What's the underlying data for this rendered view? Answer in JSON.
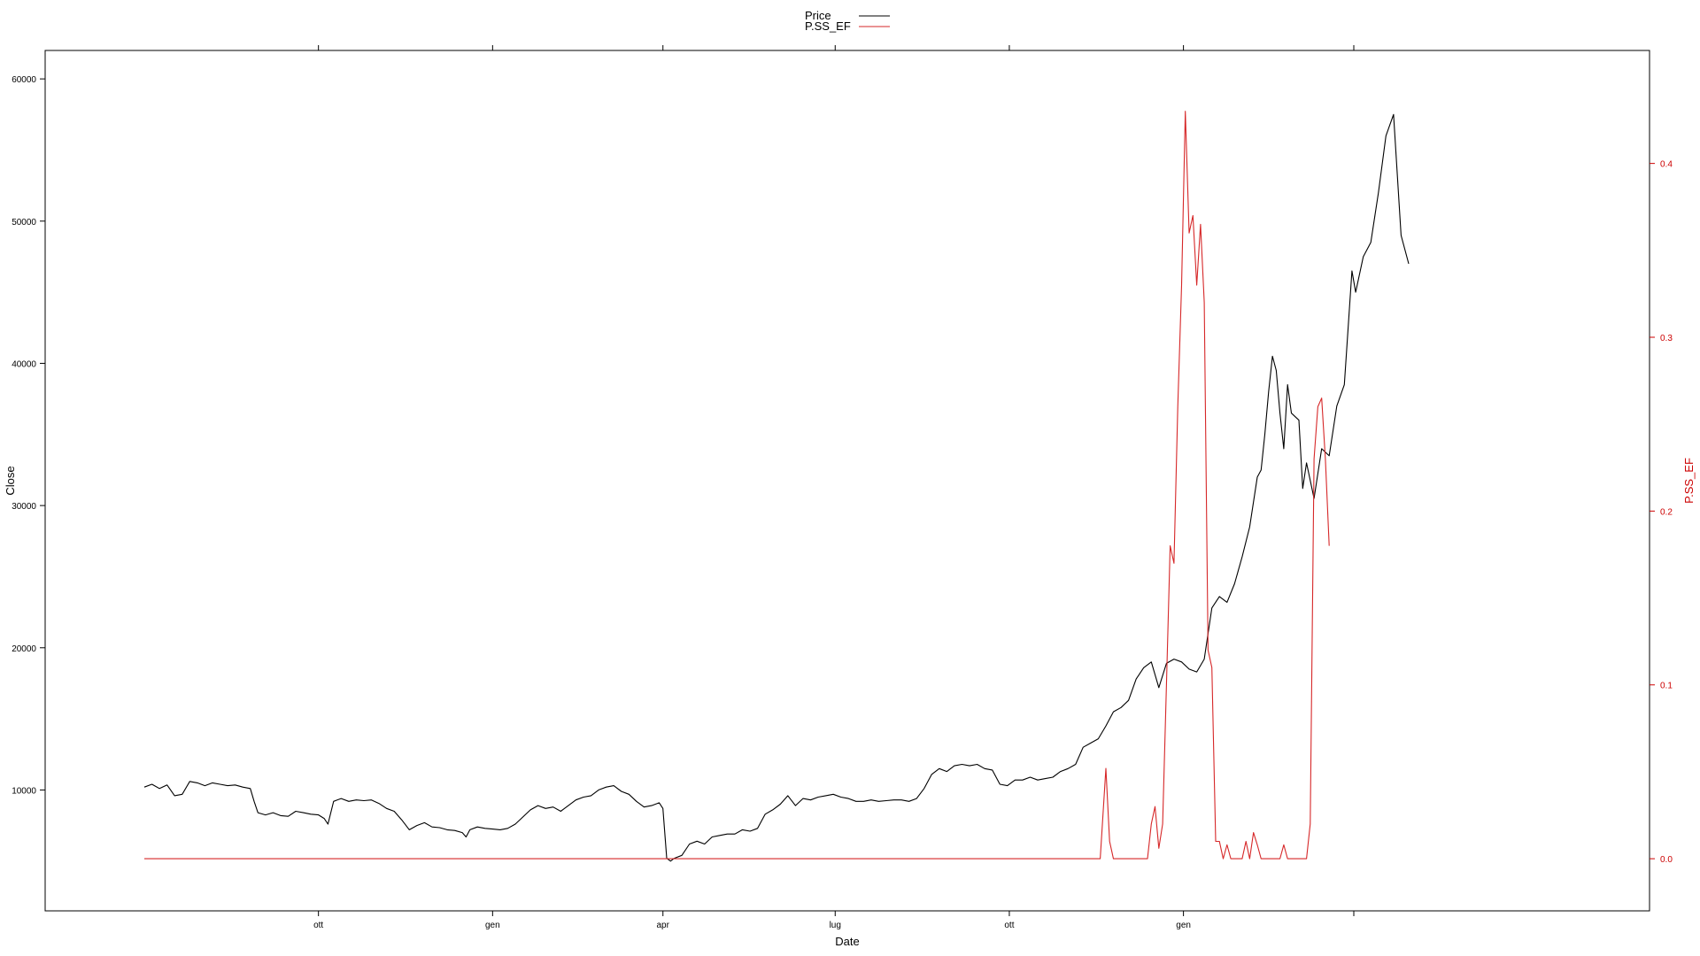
{
  "chart_data": {
    "type": "line",
    "xlabel": "Date",
    "ylabel": "Close",
    "y2label": "P.SS_EF",
    "ylim": [
      1500,
      62000
    ],
    "y2lim": [
      -0.03,
      0.465
    ],
    "xlim": [
      0,
      1080
    ],
    "x_ticks": [
      {
        "label": "ott",
        "t": 92
      },
      {
        "label": "gen",
        "t": 184
      },
      {
        "label": "apr",
        "t": 274
      },
      {
        "label": "lug",
        "t": 365
      },
      {
        "label": "ott",
        "t": 457
      },
      {
        "label": "gen",
        "t": 549
      },
      {
        "label": "",
        "t": 639
      }
    ],
    "y_ticks": [
      10000,
      20000,
      30000,
      40000,
      50000,
      60000
    ],
    "y2_ticks": [
      "0.0",
      "0.1",
      "0.2",
      "0.3",
      "0.4"
    ],
    "legend": {
      "position": "top",
      "items": [
        "Price",
        "P.SS_EF"
      ]
    },
    "series": [
      {
        "name": "Price",
        "color": "#000000",
        "axis": "left",
        "points": [
          [
            0,
            10200
          ],
          [
            4,
            10400
          ],
          [
            8,
            10100
          ],
          [
            12,
            10350
          ],
          [
            16,
            9600
          ],
          [
            20,
            9700
          ],
          [
            24,
            10600
          ],
          [
            28,
            10500
          ],
          [
            32,
            10300
          ],
          [
            36,
            10500
          ],
          [
            40,
            10400
          ],
          [
            44,
            10300
          ],
          [
            48,
            10350
          ],
          [
            52,
            10200
          ],
          [
            56,
            10100
          ],
          [
            58,
            9200
          ],
          [
            60,
            8400
          ],
          [
            64,
            8250
          ],
          [
            68,
            8400
          ],
          [
            72,
            8200
          ],
          [
            76,
            8150
          ],
          [
            80,
            8500
          ],
          [
            84,
            8400
          ],
          [
            88,
            8300
          ],
          [
            92,
            8250
          ],
          [
            95,
            8000
          ],
          [
            97,
            7600
          ],
          [
            100,
            9200
          ],
          [
            104,
            9400
          ],
          [
            108,
            9200
          ],
          [
            112,
            9300
          ],
          [
            116,
            9250
          ],
          [
            120,
            9300
          ],
          [
            124,
            9050
          ],
          [
            128,
            8700
          ],
          [
            132,
            8500
          ],
          [
            136,
            7900
          ],
          [
            140,
            7200
          ],
          [
            144,
            7500
          ],
          [
            148,
            7700
          ],
          [
            152,
            7400
          ],
          [
            156,
            7350
          ],
          [
            160,
            7200
          ],
          [
            164,
            7150
          ],
          [
            168,
            7000
          ],
          [
            170,
            6700
          ],
          [
            172,
            7200
          ],
          [
            176,
            7400
          ],
          [
            180,
            7300
          ],
          [
            184,
            7250
          ],
          [
            188,
            7200
          ],
          [
            192,
            7300
          ],
          [
            196,
            7600
          ],
          [
            200,
            8100
          ],
          [
            204,
            8600
          ],
          [
            208,
            8900
          ],
          [
            212,
            8700
          ],
          [
            216,
            8800
          ],
          [
            220,
            8500
          ],
          [
            224,
            8900
          ],
          [
            228,
            9300
          ],
          [
            232,
            9500
          ],
          [
            236,
            9600
          ],
          [
            240,
            10000
          ],
          [
            244,
            10200
          ],
          [
            248,
            10300
          ],
          [
            252,
            9900
          ],
          [
            256,
            9700
          ],
          [
            260,
            9200
          ],
          [
            264,
            8800
          ],
          [
            268,
            8900
          ],
          [
            272,
            9100
          ],
          [
            274,
            8700
          ],
          [
            276,
            5200
          ],
          [
            278,
            5000
          ],
          [
            280,
            5200
          ],
          [
            284,
            5400
          ],
          [
            288,
            6200
          ],
          [
            292,
            6400
          ],
          [
            296,
            6200
          ],
          [
            300,
            6700
          ],
          [
            304,
            6800
          ],
          [
            308,
            6900
          ],
          [
            312,
            6900
          ],
          [
            316,
            7200
          ],
          [
            320,
            7100
          ],
          [
            324,
            7300
          ],
          [
            328,
            8300
          ],
          [
            332,
            8600
          ],
          [
            336,
            9000
          ],
          [
            340,
            9600
          ],
          [
            344,
            8900
          ],
          [
            348,
            9400
          ],
          [
            352,
            9300
          ],
          [
            356,
            9500
          ],
          [
            360,
            9600
          ],
          [
            364,
            9700
          ],
          [
            368,
            9500
          ],
          [
            372,
            9400
          ],
          [
            376,
            9200
          ],
          [
            380,
            9200
          ],
          [
            384,
            9300
          ],
          [
            388,
            9200
          ],
          [
            392,
            9250
          ],
          [
            396,
            9300
          ],
          [
            400,
            9300
          ],
          [
            404,
            9200
          ],
          [
            408,
            9400
          ],
          [
            412,
            10100
          ],
          [
            416,
            11100
          ],
          [
            420,
            11500
          ],
          [
            424,
            11300
          ],
          [
            428,
            11700
          ],
          [
            432,
            11800
          ],
          [
            436,
            11700
          ],
          [
            440,
            11800
          ],
          [
            444,
            11500
          ],
          [
            448,
            11400
          ],
          [
            452,
            10400
          ],
          [
            456,
            10300
          ],
          [
            460,
            10700
          ],
          [
            464,
            10700
          ],
          [
            468,
            10900
          ],
          [
            472,
            10700
          ],
          [
            476,
            10800
          ],
          [
            480,
            10900
          ],
          [
            484,
            11300
          ],
          [
            488,
            11500
          ],
          [
            492,
            11800
          ],
          [
            496,
            13000
          ],
          [
            500,
            13300
          ],
          [
            504,
            13600
          ],
          [
            508,
            14500
          ],
          [
            512,
            15500
          ],
          [
            516,
            15800
          ],
          [
            520,
            16300
          ],
          [
            524,
            17800
          ],
          [
            528,
            18600
          ],
          [
            532,
            19000
          ],
          [
            536,
            17200
          ],
          [
            540,
            18900
          ],
          [
            544,
            19200
          ],
          [
            548,
            19000
          ],
          [
            552,
            18500
          ],
          [
            556,
            18300
          ],
          [
            560,
            19200
          ],
          [
            564,
            22800
          ],
          [
            568,
            23600
          ],
          [
            572,
            23200
          ],
          [
            576,
            24500
          ],
          [
            580,
            26400
          ],
          [
            584,
            28500
          ],
          [
            588,
            32000
          ],
          [
            590,
            32500
          ],
          [
            592,
            35000
          ],
          [
            594,
            38000
          ],
          [
            596,
            40500
          ],
          [
            598,
            39500
          ],
          [
            600,
            36500
          ],
          [
            602,
            34000
          ],
          [
            604,
            38500
          ],
          [
            606,
            36500
          ],
          [
            610,
            36000
          ],
          [
            612,
            31200
          ],
          [
            614,
            33000
          ],
          [
            618,
            30500
          ],
          [
            622,
            34000
          ],
          [
            626,
            33500
          ],
          [
            630,
            37000
          ],
          [
            634,
            38500
          ],
          [
            638,
            46500
          ],
          [
            640,
            45000
          ],
          [
            644,
            47500
          ],
          [
            648,
            48500
          ],
          [
            652,
            52000
          ],
          [
            656,
            56000
          ],
          [
            660,
            57500
          ],
          [
            664,
            49000
          ],
          [
            668,
            47000
          ]
        ]
      },
      {
        "name": "P.SS_EF",
        "color": "#d62728",
        "axis": "right",
        "points": [
          [
            0,
            0
          ],
          [
            505,
            0
          ],
          [
            508,
            0.052
          ],
          [
            510,
            0.01
          ],
          [
            512,
            0
          ],
          [
            530,
            0
          ],
          [
            532,
            0.02
          ],
          [
            534,
            0.03
          ],
          [
            536,
            0.006
          ],
          [
            538,
            0.02
          ],
          [
            540,
            0.1
          ],
          [
            542,
            0.18
          ],
          [
            544,
            0.17
          ],
          [
            546,
            0.26
          ],
          [
            548,
            0.33
          ],
          [
            550,
            0.43
          ],
          [
            552,
            0.36
          ],
          [
            554,
            0.37
          ],
          [
            556,
            0.33
          ],
          [
            558,
            0.365
          ],
          [
            560,
            0.32
          ],
          [
            562,
            0.12
          ],
          [
            564,
            0.11
          ],
          [
            566,
            0.01
          ],
          [
            568,
            0.01
          ],
          [
            570,
            0
          ],
          [
            572,
            0.008
          ],
          [
            574,
            0
          ],
          [
            580,
            0
          ],
          [
            582,
            0.01
          ],
          [
            584,
            0
          ],
          [
            586,
            0.015
          ],
          [
            588,
            0.008
          ],
          [
            590,
            0
          ],
          [
            600,
            0
          ],
          [
            602,
            0.008
          ],
          [
            604,
            0
          ],
          [
            614,
            0
          ],
          [
            616,
            0.02
          ],
          [
            618,
            0.23
          ],
          [
            620,
            0.26
          ],
          [
            622,
            0.265
          ],
          [
            624,
            0.23
          ],
          [
            626,
            0.18
          ]
        ]
      }
    ]
  }
}
